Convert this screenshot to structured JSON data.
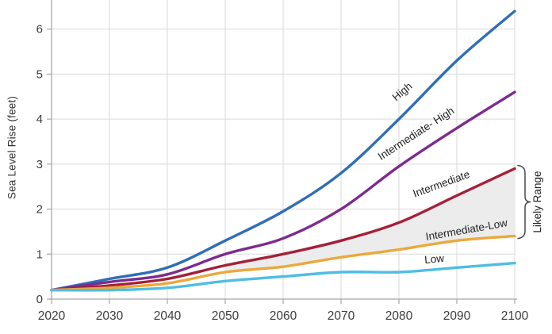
{
  "chart": {
    "y_axis_label": "Sea Level Rise (feet)",
    "colors": {
      "grid": "#d9d9d9",
      "axis": "#a6a6a6",
      "tick_text": "#3d3d3d",
      "series_label_text": "#1f1f1f",
      "band_fill": "#ececec",
      "brace": "#4a4a4a"
    }
  },
  "chart_data": {
    "type": "line",
    "title": "",
    "xlabel": "",
    "ylabel": "Sea Level Rise (feet)",
    "x": [
      2020,
      2030,
      2040,
      2050,
      2060,
      2070,
      2080,
      2090,
      2100
    ],
    "xlim": [
      2020,
      2100
    ],
    "ylim": [
      0,
      6.65
    ],
    "y_ticks": [
      0,
      1,
      2,
      3,
      4,
      5,
      6
    ],
    "grid": true,
    "legend": "inline-labels",
    "series": [
      {
        "name": "High",
        "label": "High",
        "color": "#2f6eb6",
        "values": [
          0.2,
          0.45,
          0.7,
          1.3,
          1.95,
          2.8,
          4.0,
          5.3,
          6.4
        ]
      },
      {
        "name": "Intermediate-High",
        "label": "Intermediate- High",
        "color": "#7d2b8f",
        "values": [
          0.2,
          0.38,
          0.55,
          1.0,
          1.35,
          2.0,
          2.95,
          3.8,
          4.6
        ]
      },
      {
        "name": "Intermediate",
        "label": "Intermediate",
        "color": "#a42038",
        "values": [
          0.2,
          0.3,
          0.45,
          0.75,
          1.0,
          1.3,
          1.7,
          2.3,
          2.9
        ]
      },
      {
        "name": "Intermediate-Low",
        "label": "Intermediate-Low",
        "color": "#eaa93b",
        "values": [
          0.2,
          0.25,
          0.35,
          0.6,
          0.72,
          0.93,
          1.1,
          1.3,
          1.4
        ]
      },
      {
        "name": "Low",
        "label": "Low",
        "color": "#4fbde4",
        "values": [
          0.2,
          0.2,
          0.25,
          0.4,
          0.5,
          0.6,
          0.6,
          0.7,
          0.8
        ]
      }
    ],
    "shaded_band": {
      "between": [
        "Intermediate",
        "Intermediate-Low"
      ],
      "from_x": 2050,
      "to_x": 2100,
      "color": "#ececec",
      "label": "Likely Range"
    },
    "annotation": {
      "label": "Likely Range",
      "position": "right-brace"
    }
  }
}
